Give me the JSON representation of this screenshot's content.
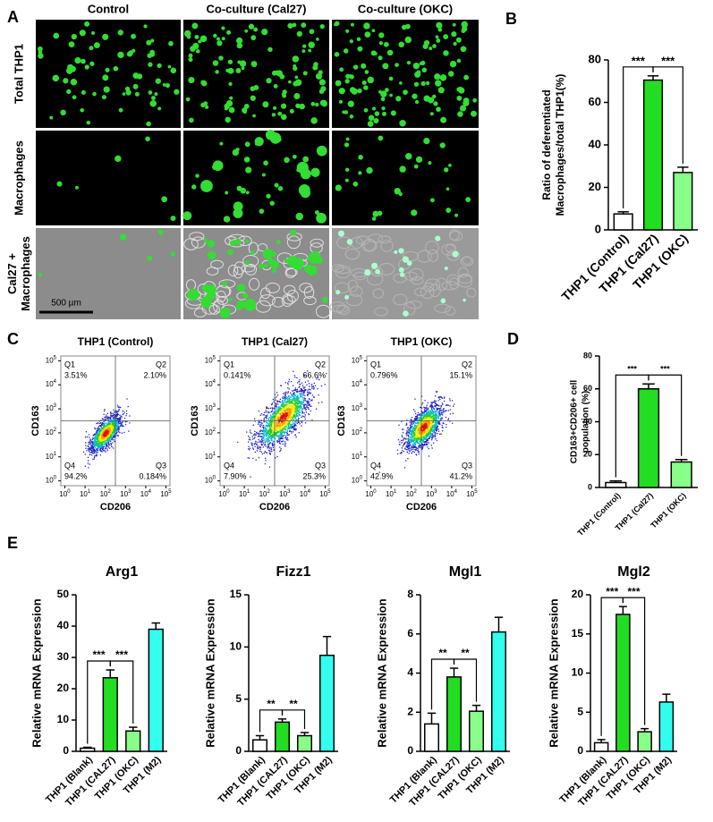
{
  "panel_a": {
    "letter": "A",
    "columns": [
      "Control",
      "Co-culture (Cal27)",
      "Co-culture (OKC)"
    ],
    "rows": [
      [
        "Total THP1"
      ],
      [
        "Macrophages"
      ],
      [
        "Cal27 +",
        "Macrophages"
      ]
    ],
    "scale_bar": "500 µm"
  },
  "panel_c": {
    "letter": "C",
    "x_label": "CD206",
    "y_label": "CD163",
    "tick_base": "10",
    "tick_exponents": [
      0,
      1,
      2,
      3,
      4,
      5
    ],
    "plots": [
      {
        "title": "THP1 (Control)",
        "quadrants": [
          {
            "name": "Q1",
            "value": "3.51%"
          },
          {
            "name": "Q2",
            "value": "2.10%"
          },
          {
            "name": "Q3",
            "value": "0.184%"
          },
          {
            "name": "Q4",
            "value": "94.2%"
          }
        ]
      },
      {
        "title": "THP1 (Cal27)",
        "quadrants": [
          {
            "name": "Q1",
            "value": "0.141%"
          },
          {
            "name": "Q2",
            "value": "66.6%"
          },
          {
            "name": "Q3",
            "value": "25.3%"
          },
          {
            "name": "Q4",
            "value": "7.90%"
          }
        ]
      },
      {
        "title": "THP1 (OKC)",
        "quadrants": [
          {
            "name": "Q1",
            "value": "0.796%"
          },
          {
            "name": "Q2",
            "value": "15.1%"
          },
          {
            "name": "Q3",
            "value": "41.2%"
          },
          {
            "name": "Q4",
            "value": "42.9%"
          }
        ]
      }
    ]
  },
  "chart_data": [
    {
      "type": "bar",
      "panel": "B",
      "ylabel": [
        "Ratio of deferentiated",
        "Macrophages/total THP1(%)"
      ],
      "categories": [
        "THP1 (Control)",
        "THP1 (Cal27)",
        "THP1 (OKC)"
      ],
      "values": [
        7.5,
        70.5,
        27
      ],
      "errors": [
        1,
        2,
        2.5
      ],
      "colors": [
        "#ffffff",
        "#22dd22",
        "#88ff88"
      ],
      "ylim": [
        0,
        80
      ],
      "yticks": [
        0,
        20,
        40,
        60,
        80
      ],
      "significance": [
        "***",
        "***"
      ]
    },
    {
      "type": "bar",
      "panel": "D",
      "ylabel": [
        "CD163+CD206+ cell",
        "population (%)"
      ],
      "categories": [
        "THP1 (Control)",
        "THP1 (Cal27)",
        "THP1 (OKC)"
      ],
      "values": [
        3,
        60,
        15.5
      ],
      "errors": [
        1,
        3,
        1.5
      ],
      "colors": [
        "#ffffff",
        "#22dd22",
        "#88ff88"
      ],
      "ylim": [
        0,
        80
      ],
      "yticks": [
        0,
        20,
        40,
        60,
        80
      ],
      "significance": [
        "***",
        "***"
      ]
    },
    {
      "type": "bar",
      "panel": "E",
      "title": "Arg1",
      "ylabel": [
        "Relative mRNA Expression"
      ],
      "categories": [
        "THP1 (Blank)",
        "THP1 (CAL27)",
        "THP1 (OKC)",
        "THP1 (M2)"
      ],
      "values": [
        1,
        23.5,
        6.5,
        39
      ],
      "errors": [
        0.3,
        2.5,
        1.2,
        2
      ],
      "colors": [
        "#ffffff",
        "#22dd22",
        "#88ff88",
        "#33ffee"
      ],
      "ylim": [
        0,
        50
      ],
      "yticks": [
        0,
        10,
        20,
        30,
        40,
        50
      ],
      "significance": [
        "***",
        "***"
      ]
    },
    {
      "type": "bar",
      "title": "Fizz1",
      "ylabel": [
        "Relative mRNA Expression"
      ],
      "categories": [
        "THP1 (Blank)",
        "THP1 (CAL27)",
        "THP1 (OKC)",
        "THP1 (M2)"
      ],
      "values": [
        1.1,
        2.8,
        1.5,
        9.2
      ],
      "errors": [
        0.4,
        0.3,
        0.3,
        1.8
      ],
      "colors": [
        "#ffffff",
        "#22dd22",
        "#88ff88",
        "#33ffee"
      ],
      "ylim": [
        0,
        15
      ],
      "yticks": [
        0,
        5,
        10,
        15
      ],
      "significance": [
        "**",
        "**"
      ]
    },
    {
      "type": "bar",
      "title": "Mgl1",
      "ylabel": [
        "Relative mRNA Expression"
      ],
      "categories": [
        "THP1 (Blank)",
        "THP1 (CAL27)",
        "THP1 (OKC)",
        "THP1 (M2)"
      ],
      "values": [
        1.4,
        3.8,
        2.05,
        6.1
      ],
      "errors": [
        0.55,
        0.45,
        0.3,
        0.75
      ],
      "colors": [
        "#ffffff",
        "#22dd22",
        "#88ff88",
        "#33ffee"
      ],
      "ylim": [
        0,
        8
      ],
      "yticks": [
        0,
        2,
        4,
        6,
        8
      ],
      "significance": [
        "**",
        "**"
      ]
    },
    {
      "type": "bar",
      "title": "Mgl2",
      "ylabel": [
        "Relative mRNA Expression"
      ],
      "categories": [
        "THP1 (Blank)",
        "THP1 (CAL27)",
        "THP1 (OKC)",
        "THP1 (M2)"
      ],
      "values": [
        1.1,
        17.5,
        2.5,
        6.3
      ],
      "errors": [
        0.4,
        1,
        0.4,
        1
      ],
      "colors": [
        "#ffffff",
        "#22dd22",
        "#88ff88",
        "#33ffee"
      ],
      "ylim": [
        0,
        20
      ],
      "yticks": [
        0,
        5,
        10,
        15,
        20
      ],
      "significance": [
        "***",
        "***"
      ]
    }
  ]
}
